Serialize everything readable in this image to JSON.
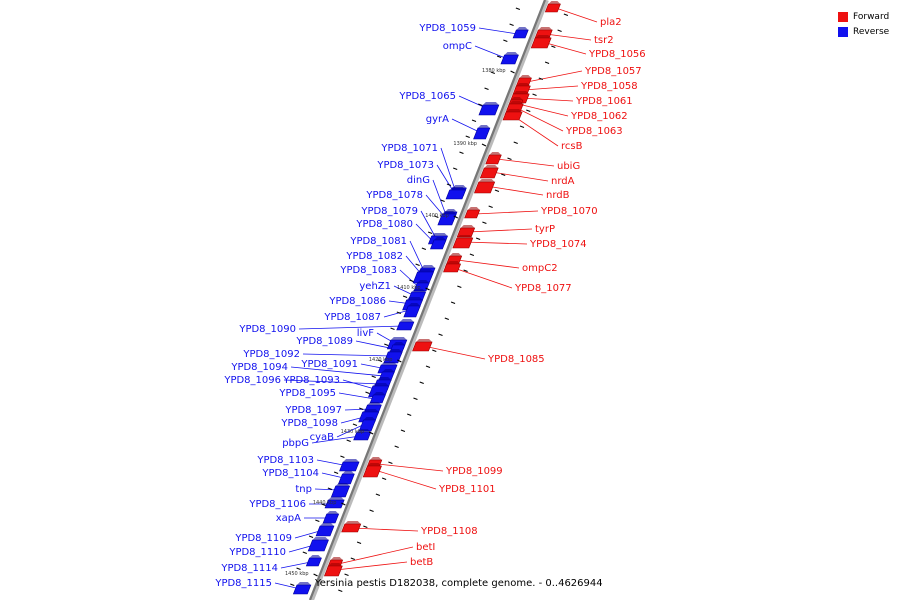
{
  "title": "Yersinia pestis D182038, complete genome. - 0..4626944",
  "colors": {
    "forward": "#ee1111",
    "reverse": "#1111ee",
    "axis": "#777777"
  },
  "legend": [
    {
      "label": "Forward",
      "color": "#ee1111"
    },
    {
      "label": "Reverse",
      "color": "#1111ee"
    }
  ],
  "ticks": [
    "1380 kbp",
    "1390 kbp",
    "1400 kbp",
    "1410 kbp",
    "1420 kbp",
    "1430 kbp",
    "1440 kbp",
    "1450 kbp"
  ],
  "reverse_genes": [
    "YPD8_1059",
    "ompC",
    "YPD8_1065",
    "gyrA",
    "YPD8_1071",
    "YPD8_1073",
    "dinG",
    "YPD8_1078",
    "YPD8_1079",
    "YPD8_1080",
    "YPD8_1081",
    "YPD8_1082",
    "YPD8_1083",
    "yehZ1",
    "YPD8_1086",
    "YPD8_1087",
    "YPD8_1090",
    "livF",
    "YPD8_1089",
    "YPD8_1092",
    "YPD8_1091",
    "YPD8_1094",
    "YPD8_1096",
    "YPD8_1093",
    "YPD8_1095",
    "YPD8_1097",
    "YPD8_1098",
    "cyaB",
    "pbpG",
    "YPD8_1103",
    "YPD8_1104",
    "tnp",
    "YPD8_1106",
    "xapA",
    "YPD8_1109",
    "YPD8_1110",
    "YPD8_1114",
    "YPD8_1115"
  ],
  "forward_genes": [
    "pla2",
    "tsr2",
    "YPD8_1056",
    "YPD8_1057",
    "YPD8_1058",
    "YPD8_1061",
    "YPD8_1062",
    "YPD8_1063",
    "rcsB",
    "ubiG",
    "nrdA",
    "nrdB",
    "YPD8_1070",
    "tyrP",
    "YPD8_1074",
    "ompC2",
    "YPD8_1077",
    "YPD8_1085",
    "YPD8_1099",
    "YPD8_1101",
    "YPD8_1108",
    "betI",
    "betB"
  ]
}
